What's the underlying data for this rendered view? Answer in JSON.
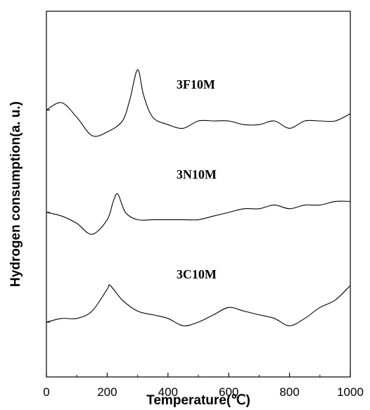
{
  "chart_data": {
    "type": "line",
    "xlabel": "Temperature(℃)",
    "ylabel": "Hydrogen consumption(a. u.)",
    "xlim": [
      0,
      1000
    ],
    "xticks": [
      0,
      200,
      400,
      600,
      800,
      1000
    ],
    "grid": false,
    "y_tick_labels": false,
    "series": [
      {
        "name": "3F10M",
        "x": [
          0,
          50,
          100,
          150,
          200,
          250,
          275,
          300,
          320,
          350,
          400,
          450,
          500,
          550,
          600,
          650,
          700,
          750,
          800,
          850,
          900,
          950,
          1000
        ],
        "y": [
          0.73,
          0.75,
          0.71,
          0.66,
          0.67,
          0.7,
          0.76,
          0.84,
          0.77,
          0.71,
          0.69,
          0.68,
          0.7,
          0.7,
          0.7,
          0.69,
          0.69,
          0.7,
          0.68,
          0.7,
          0.7,
          0.7,
          0.72
        ]
      },
      {
        "name": "3N10M",
        "x": [
          0,
          50,
          100,
          150,
          200,
          220,
          235,
          260,
          300,
          350,
          400,
          450,
          500,
          550,
          600,
          650,
          700,
          750,
          800,
          850,
          900,
          950,
          1000
        ],
        "y": [
          0.45,
          0.44,
          0.42,
          0.39,
          0.43,
          0.48,
          0.5,
          0.45,
          0.43,
          0.43,
          0.43,
          0.43,
          0.43,
          0.44,
          0.45,
          0.46,
          0.46,
          0.47,
          0.46,
          0.47,
          0.47,
          0.48,
          0.48
        ]
      },
      {
        "name": "3C10M",
        "x": [
          0,
          50,
          100,
          150,
          200,
          210,
          250,
          300,
          350,
          400,
          450,
          500,
          550,
          600,
          650,
          700,
          750,
          800,
          850,
          900,
          950,
          1000
        ],
        "y": [
          0.15,
          0.16,
          0.16,
          0.18,
          0.24,
          0.25,
          0.21,
          0.18,
          0.17,
          0.16,
          0.14,
          0.15,
          0.17,
          0.19,
          0.18,
          0.17,
          0.16,
          0.14,
          0.16,
          0.19,
          0.21,
          0.25
        ]
      }
    ]
  }
}
